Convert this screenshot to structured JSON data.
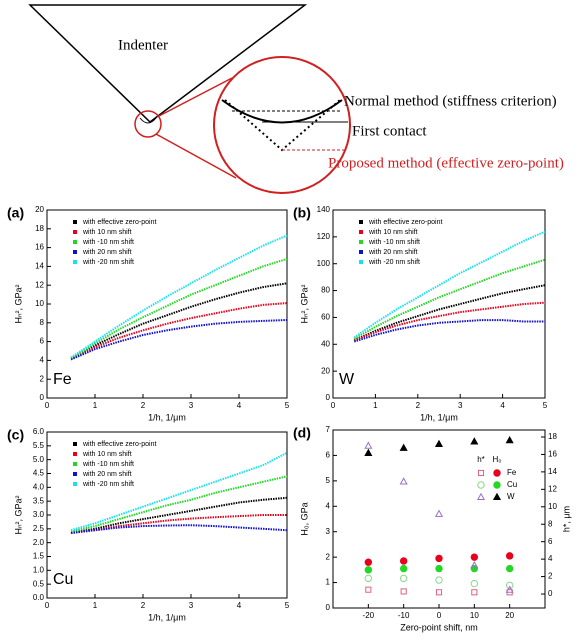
{
  "diagram": {
    "indenter": "Indenter",
    "normal": "Normal method (stiffness criterion)",
    "first_contact": "First contact",
    "proposed": "Proposed method (effective zero-point)"
  },
  "chart_data": [
    {
      "type": "line",
      "panel": "(a)",
      "annotation": "Fe",
      "x_label": "1/h, 1/μm",
      "y_label": "Hₙ², GPa²",
      "x": [
        0.5,
        1,
        1.5,
        2,
        2.5,
        3,
        3.5,
        4,
        4.5,
        5
      ],
      "xlim": [
        0,
        5
      ],
      "xticks": [
        0,
        1,
        2,
        3,
        4,
        5
      ],
      "ylim": [
        0,
        20
      ],
      "yticks": [
        0,
        2,
        4,
        6,
        8,
        10,
        12,
        14,
        16,
        18,
        20
      ],
      "series": [
        {
          "name": "with effective zero-point",
          "color": "#000000",
          "values": [
            4.2,
            5.6,
            6.8,
            7.9,
            8.8,
            9.7,
            10.5,
            11.2,
            11.8,
            12.2
          ]
        },
        {
          "name": "with 10 nm shift",
          "color": "#e8001c",
          "values": [
            4.2,
            5.4,
            6.4,
            7.2,
            7.9,
            8.5,
            9.0,
            9.5,
            9.9,
            10.1
          ]
        },
        {
          "name": "with -10 nm shift",
          "color": "#22d822",
          "values": [
            4.2,
            5.8,
            7.3,
            8.6,
            9.8,
            11.0,
            12.0,
            13.0,
            14.0,
            14.8
          ]
        },
        {
          "name": "with 20 nm shift",
          "color": "#1010d0",
          "values": [
            4.1,
            5.2,
            6.0,
            6.7,
            7.2,
            7.6,
            7.9,
            8.1,
            8.2,
            8.3
          ]
        },
        {
          "name": "with -20 nm shift",
          "color": "#18e0f0",
          "values": [
            4.3,
            6.0,
            7.7,
            9.3,
            10.8,
            12.2,
            13.6,
            14.9,
            16.2,
            17.3
          ]
        }
      ]
    },
    {
      "type": "line",
      "panel": "(b)",
      "annotation": "W",
      "x_label": "1/h, 1/μm",
      "y_label": "Hₙ², GPa²",
      "x": [
        0.5,
        1,
        1.5,
        2,
        2.5,
        3,
        3.5,
        4,
        4.5,
        5
      ],
      "xlim": [
        0,
        5
      ],
      "xticks": [
        0,
        1,
        2,
        3,
        4,
        5
      ],
      "ylim": [
        0,
        140
      ],
      "yticks": [
        0,
        20,
        40,
        60,
        80,
        100,
        120,
        140
      ],
      "series": [
        {
          "name": "with effective zero-point",
          "color": "#000000",
          "values": [
            43,
            50,
            56,
            61,
            66,
            70,
            74,
            78,
            81,
            84
          ]
        },
        {
          "name": "with 10 nm shift",
          "color": "#e8001c",
          "values": [
            43,
            49,
            54,
            58,
            61,
            64,
            66,
            68,
            70,
            71
          ]
        },
        {
          "name": "with -10 nm shift",
          "color": "#22d822",
          "values": [
            44,
            53,
            61,
            68,
            75,
            81,
            87,
            93,
            98,
            103
          ]
        },
        {
          "name": "with 20 nm shift",
          "color": "#1010d0",
          "values": [
            42,
            47,
            51,
            54,
            56,
            57,
            58,
            58,
            57,
            57
          ]
        },
        {
          "name": "with -20 nm shift",
          "color": "#18e0f0",
          "values": [
            45,
            56,
            66,
            75,
            84,
            93,
            101,
            109,
            117,
            124
          ]
        }
      ]
    },
    {
      "type": "line",
      "panel": "(c)",
      "annotation": "Cu",
      "x_label": "1/h, 1/μm",
      "y_label": "Hₙ², GPa²",
      "x": [
        0.5,
        1,
        1.5,
        2,
        2.5,
        3,
        3.5,
        4,
        4.5,
        5
      ],
      "xlim": [
        0,
        5
      ],
      "xticks": [
        0,
        1,
        2,
        3,
        4,
        5
      ],
      "ylim": [
        0,
        6
      ],
      "yticks": [
        {
          "value": 0,
          "label": "0.0"
        },
        0.5,
        {
          "value": 1,
          "label": "1.0"
        },
        1.5,
        {
          "value": 2,
          "label": "2.0"
        },
        2.5,
        {
          "value": 3,
          "label": "3.0"
        },
        3.5,
        {
          "value": 4,
          "label": "4.0"
        },
        4.5,
        {
          "value": 5,
          "label": "5.0"
        },
        5.5,
        {
          "value": 6,
          "label": "6.0"
        }
      ],
      "series": [
        {
          "name": "with effective zero-point",
          "color": "#000000",
          "values": [
            2.35,
            2.5,
            2.7,
            2.85,
            3.0,
            3.15,
            3.3,
            3.45,
            3.55,
            3.62
          ]
        },
        {
          "name": "with 10 nm shift",
          "color": "#e8001c",
          "values": [
            2.35,
            2.45,
            2.6,
            2.7,
            2.8,
            2.87,
            2.92,
            2.96,
            3.0,
            3.0
          ]
        },
        {
          "name": "with -10 nm shift",
          "color": "#22d822",
          "values": [
            2.4,
            2.6,
            2.85,
            3.1,
            3.35,
            3.55,
            3.8,
            4.0,
            4.2,
            4.4
          ]
        },
        {
          "name": "with 20 nm shift",
          "color": "#1010d0",
          "values": [
            2.35,
            2.45,
            2.55,
            2.6,
            2.62,
            2.63,
            2.6,
            2.55,
            2.5,
            2.45
          ]
        },
        {
          "name": "with -20 nm shift",
          "color": "#18e0f0",
          "values": [
            2.45,
            2.7,
            3.0,
            3.3,
            3.6,
            3.9,
            4.2,
            4.5,
            4.8,
            5.25
          ]
        }
      ]
    },
    {
      "type": "scatter",
      "panel": "(d)",
      "x_label": "Zero-point shift, nm",
      "y_label": "H₀, GPa",
      "y2_label": "h*, μm",
      "legend_headers": [
        "h*",
        "H₀"
      ],
      "x": [
        -20,
        -10,
        0,
        10,
        20
      ],
      "xlim": [
        -30,
        30
      ],
      "xticks": [
        -20,
        -10,
        0,
        10,
        20
      ],
      "ylim": [
        0,
        7
      ],
      "yticks": [
        0,
        1,
        2,
        3,
        4,
        5,
        6,
        7
      ],
      "y2lim": [
        -1.6,
        18.8
      ],
      "y2ticks": [
        0,
        2,
        4,
        6,
        8,
        10,
        12,
        14,
        16,
        18
      ],
      "series": [
        {
          "name": "Fe",
          "color": "#e8001c",
          "marker": "circle",
          "filled": true,
          "values": [
            1.8,
            1.85,
            1.95,
            2.0,
            2.05
          ]
        },
        {
          "name": "Cu",
          "color": "#22d822",
          "marker": "circle",
          "filled": true,
          "values": [
            1.5,
            1.55,
            1.55,
            1.55,
            1.55
          ]
        },
        {
          "name": "W",
          "color": "#000000",
          "marker": "triangle",
          "filled": true,
          "values": [
            6.1,
            6.3,
            6.45,
            6.55,
            6.6
          ]
        },
        {
          "color": "#e06080",
          "marker": "square",
          "filled": false,
          "axis": "y2",
          "values": [
            0.5,
            0.3,
            0.2,
            0.2,
            0.2
          ]
        },
        {
          "color": "#88d888",
          "marker": "circle",
          "filled": false,
          "axis": "y2",
          "values": [
            1.8,
            1.8,
            1.6,
            1.2,
            1.0
          ]
        },
        {
          "color": "#9a70c8",
          "marker": "triangle",
          "filled": false,
          "axis": "y2",
          "values": [
            17,
            12.9,
            9.2,
            3.3,
            0.5
          ]
        }
      ]
    }
  ]
}
